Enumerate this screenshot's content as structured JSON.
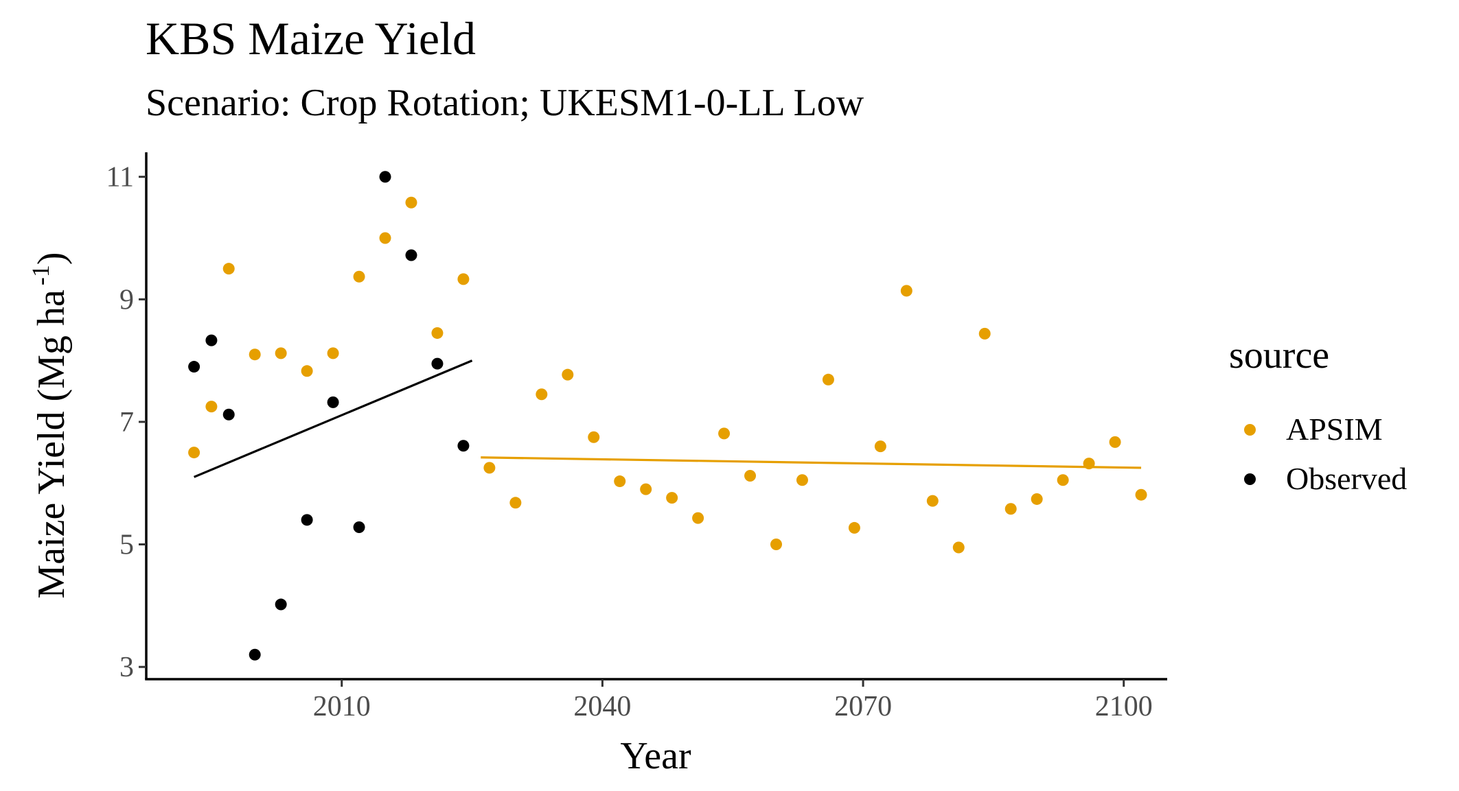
{
  "chart_data": {
    "type": "scatter",
    "title": "KBS Maize Yield",
    "subtitle": "Scenario: Crop Rotation; UKESM1-0-LL Low",
    "xlabel": "Year",
    "ylabel": "Maize Yield (Mg ha",
    "ylabel_sup": "-1",
    "ylabel_close": ")",
    "xlim": [
      1987.5,
      2105
    ],
    "ylim": [
      2.8,
      11.4
    ],
    "xticks": [
      2010,
      2040,
      2070,
      2100
    ],
    "yticks": [
      3,
      5,
      7,
      9,
      11
    ],
    "grid": false,
    "legend": {
      "title": "source",
      "position": "right",
      "entries": [
        "APSIM",
        "Observed"
      ]
    },
    "series": [
      {
        "name": "APSIM",
        "color": "#E69F00",
        "x": [
          1993,
          1995,
          1997,
          2000,
          2003,
          2006,
          2009,
          2012,
          2015,
          2018,
          2021,
          2024,
          2027,
          2030,
          2033,
          2036,
          2039,
          2042,
          2045,
          2048,
          2051,
          2054,
          2057,
          2060,
          2063,
          2066,
          2069,
          2072,
          2075,
          2078,
          2081,
          2084,
          2087,
          2090,
          2093,
          2096,
          2099,
          2102
        ],
        "y": [
          6.5,
          7.25,
          9.5,
          8.1,
          8.12,
          7.83,
          8.12,
          9.37,
          10.0,
          10.58,
          8.45,
          9.33,
          6.25,
          5.68,
          7.45,
          7.77,
          6.75,
          6.03,
          5.9,
          5.76,
          5.43,
          6.81,
          6.12,
          5.0,
          6.05,
          7.69,
          5.27,
          6.6,
          9.14,
          5.71,
          4.95,
          8.44,
          5.58,
          5.74,
          6.05,
          6.32,
          6.67,
          5.81
        ]
      },
      {
        "name": "Observed",
        "color": "#000000",
        "x": [
          1993,
          1995,
          1997,
          2000,
          2003,
          2006,
          2009,
          2012,
          2015,
          2018,
          2021,
          2024
        ],
        "y": [
          7.9,
          8.33,
          7.12,
          3.2,
          4.02,
          5.4,
          7.32,
          5.28,
          11.0,
          9.72,
          7.95,
          6.61
        ]
      }
    ],
    "trend_lines": [
      {
        "series": "Observed",
        "color": "#000000",
        "x": [
          1993,
          2025
        ],
        "y": [
          6.1,
          8.0
        ]
      },
      {
        "series": "APSIM",
        "color": "#E69F00",
        "x": [
          2026,
          2102
        ],
        "y": [
          6.42,
          6.25
        ]
      }
    ]
  }
}
